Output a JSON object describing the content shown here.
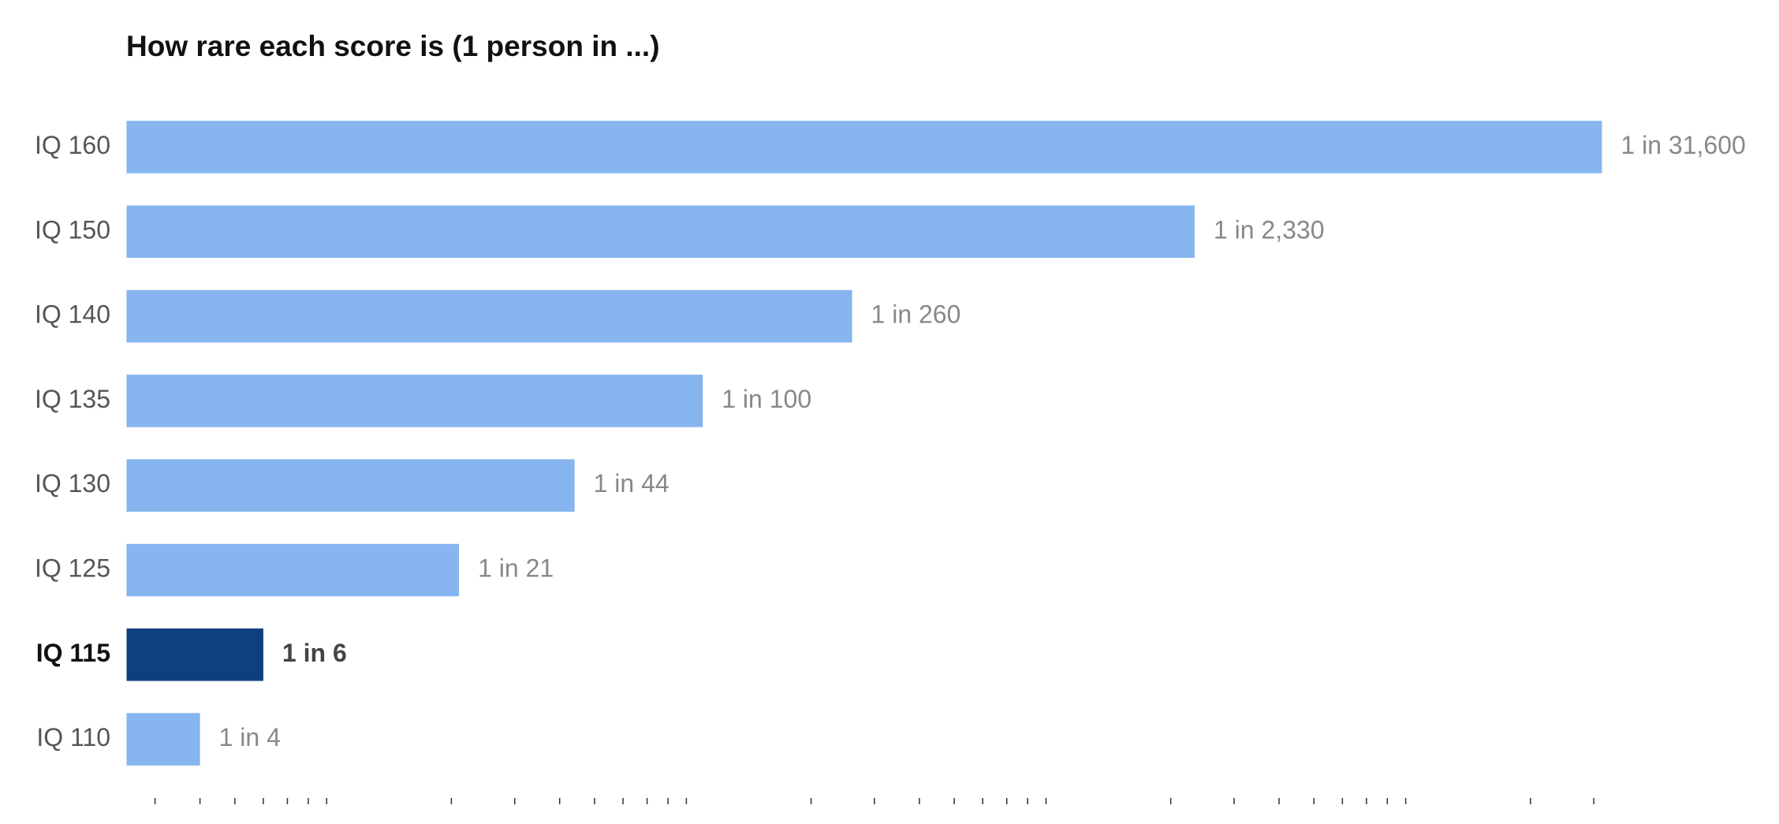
{
  "chart_data": {
    "type": "barh",
    "title": "How rare each score is (1 person in ...)",
    "categories": [
      "IQ 160",
      "IQ 150",
      "IQ 140",
      "IQ 135",
      "IQ 130",
      "IQ 125",
      "IQ 115",
      "IQ 110"
    ],
    "values": [
      31600,
      2330,
      260,
      100,
      44,
      21,
      6,
      4
    ],
    "value_labels": [
      "1 in 31,600",
      "1 in 2,330",
      "1 in 260",
      "1 in 100",
      "1 in 44",
      "1 in 21",
      "1 in 6",
      "1 in 4"
    ],
    "color": "#86b5ef",
    "bar_colors": [
      "#86b5ef",
      "#86b5ef",
      "#86b5ef",
      "#86b5ef",
      "#86b5ef",
      "#86b5ef",
      "#0f3f7e",
      "#86b5ef"
    ],
    "xscale": "log",
    "xlim": [
      2.5,
      44000
    ],
    "xticks": [
      3,
      4,
      5,
      6,
      7,
      8,
      9,
      20,
      30,
      40,
      50,
      60,
      70,
      80,
      90,
      200,
      300,
      400,
      500,
      600,
      700,
      800,
      900,
      2000,
      3000,
      4000,
      5000,
      6000,
      7000,
      8000,
      9000,
      20000,
      30000
    ],
    "grid": false
  }
}
